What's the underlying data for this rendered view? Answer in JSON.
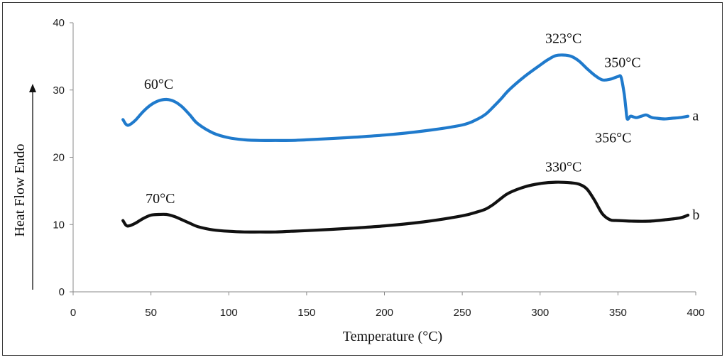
{
  "chart_data": {
    "type": "line",
    "xlabel": "Temperature (°C)",
    "ylabel": "Heat Flow Endo",
    "xlim": [
      0,
      400
    ],
    "ylim": [
      0,
      40
    ],
    "xticks": [
      0,
      50,
      100,
      150,
      200,
      250,
      300,
      350,
      400
    ],
    "yticks": [
      0,
      10,
      20,
      30,
      40
    ],
    "grid": false,
    "series": [
      {
        "name": "a",
        "color": "#1f7acc",
        "x": [
          32,
          34,
          36,
          40,
          45,
          50,
          55,
          60,
          65,
          70,
          75,
          80,
          90,
          100,
          110,
          120,
          130,
          140,
          150,
          175,
          200,
          225,
          250,
          260,
          265,
          270,
          275,
          280,
          290,
          300,
          305,
          310,
          315,
          320,
          325,
          330,
          335,
          340,
          345,
          350,
          352,
          354,
          355,
          356,
          358,
          360,
          362,
          365,
          368,
          370,
          372,
          375,
          380,
          385,
          390,
          395
        ],
        "y": [
          25.6,
          24.9,
          24.8,
          25.5,
          26.8,
          27.8,
          28.4,
          28.6,
          28.3,
          27.5,
          26.3,
          25.0,
          23.6,
          22.9,
          22.6,
          22.5,
          22.5,
          22.5,
          22.6,
          22.9,
          23.3,
          23.9,
          24.8,
          25.7,
          26.4,
          27.5,
          28.7,
          30.0,
          32.0,
          33.7,
          34.5,
          35.1,
          35.2,
          35.0,
          34.3,
          33.2,
          32.2,
          31.5,
          31.6,
          32.0,
          31.9,
          29.5,
          27.5,
          25.7,
          26.1,
          26.0,
          25.9,
          26.1,
          26.3,
          26.1,
          25.9,
          25.8,
          25.7,
          25.8,
          25.9,
          26.1
        ]
      },
      {
        "name": "b",
        "color": "#111111",
        "x": [
          32,
          34,
          36,
          40,
          45,
          50,
          55,
          60,
          65,
          70,
          75,
          80,
          90,
          100,
          110,
          120,
          130,
          140,
          150,
          175,
          200,
          225,
          250,
          260,
          265,
          270,
          275,
          280,
          290,
          300,
          310,
          320,
          325,
          330,
          335,
          340,
          345,
          350,
          360,
          370,
          380,
          390,
          395
        ],
        "y": [
          10.6,
          9.9,
          9.8,
          10.2,
          10.9,
          11.4,
          11.5,
          11.5,
          11.2,
          10.7,
          10.2,
          9.7,
          9.2,
          9.0,
          8.9,
          8.9,
          8.9,
          9.0,
          9.1,
          9.4,
          9.8,
          10.4,
          11.3,
          11.9,
          12.3,
          13.0,
          13.9,
          14.7,
          15.6,
          16.1,
          16.3,
          16.2,
          16.0,
          15.3,
          13.6,
          11.6,
          10.7,
          10.6,
          10.5,
          10.5,
          10.7,
          11.0,
          11.4
        ]
      }
    ],
    "annotations": [
      {
        "text": "60°C",
        "x": 55,
        "y": 30.2
      },
      {
        "text": "323°C",
        "x": 315,
        "y": 37.0
      },
      {
        "text": "350°C",
        "x": 353,
        "y": 33.4
      },
      {
        "text": "356°C",
        "x": 347,
        "y": 22.2
      },
      {
        "text": "70°C",
        "x": 56,
        "y": 13.2
      },
      {
        "text": "330°C",
        "x": 315,
        "y": 17.9
      }
    ],
    "series_labels": [
      {
        "text": "a",
        "x": 397,
        "y": 26.1
      },
      {
        "text": "b",
        "x": 397,
        "y": 11.4
      }
    ]
  }
}
